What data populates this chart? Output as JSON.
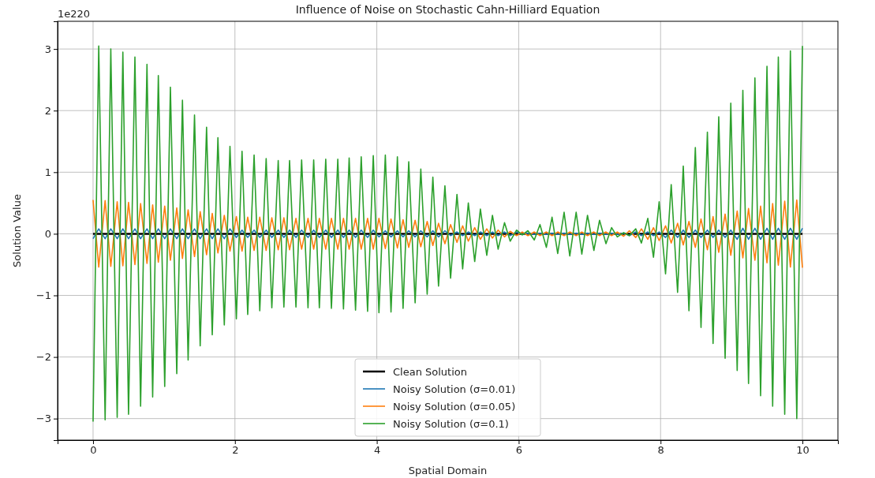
{
  "chart_data": {
    "type": "line",
    "title": "Influence of Noise on Stochastic Cahn-Hilliard Equation",
    "xlabel": "Spatial Domain",
    "ylabel": "Solution Value",
    "annotations": [
      "1e220"
    ],
    "xlim": [
      -0.5,
      10.5
    ],
    "xticks": [
      0,
      2,
      4,
      6,
      8,
      10
    ],
    "ylim": [
      -3.35,
      3.45
    ],
    "yticks": [
      {
        "value": -3,
        "label": "−3"
      },
      {
        "value": -2,
        "label": "−2"
      },
      {
        "value": -1,
        "label": "−1"
      },
      0,
      1,
      2,
      3
    ],
    "grid": true,
    "legend": "bottom",
    "marker": "none",
    "line_style": "solid",
    "x": [
      0,
      0.08,
      0.17,
      0.25,
      0.34,
      0.42,
      0.5,
      0.59,
      0.67,
      0.76,
      0.84,
      0.92,
      1.01,
      1.09,
      1.18,
      1.26,
      1.34,
      1.43,
      1.51,
      1.6,
      1.68,
      1.76,
      1.85,
      1.93,
      2.02,
      2.1,
      2.18,
      2.27,
      2.35,
      2.44,
      2.52,
      2.61,
      2.69,
      2.77,
      2.86,
      2.94,
      3.03,
      3.11,
      3.19,
      3.28,
      3.36,
      3.45,
      3.53,
      3.61,
      3.7,
      3.78,
      3.87,
      3.95,
      4.03,
      4.12,
      4.2,
      4.29,
      4.37,
      4.45,
      4.54,
      4.62,
      4.71,
      4.79,
      4.87,
      4.96,
      5.04,
      5.13,
      5.21,
      5.29,
      5.38,
      5.46,
      5.55,
      5.63,
      5.71,
      5.8,
      5.88,
      5.97,
      6.05,
      6.13,
      6.22,
      6.3,
      6.39,
      6.47,
      6.55,
      6.64,
      6.72,
      6.81,
      6.89,
      6.97,
      7.06,
      7.14,
      7.23,
      7.31,
      7.39,
      7.48,
      7.56,
      7.65,
      7.73,
      7.82,
      7.9,
      7.98,
      8.07,
      8.15,
      8.24,
      8.32,
      8.4,
      8.49,
      8.57,
      8.66,
      8.74,
      8.82,
      8.91,
      8.99,
      9.08,
      9.16,
      9.24,
      9.33,
      9.41,
      9.5,
      9.58,
      9.66,
      9.75,
      9.83,
      9.92,
      10
    ],
    "series": [
      {
        "name": "Clean Solution",
        "color": "#000000",
        "values": [
          0,
          0,
          0,
          0,
          0,
          0,
          0,
          0,
          0,
          0,
          0,
          0,
          0,
          0,
          0,
          0,
          0,
          0,
          0,
          0,
          0,
          0,
          0,
          0,
          0,
          0,
          0,
          0,
          0,
          0,
          0,
          0,
          0,
          0,
          0,
          0,
          0,
          0,
          0,
          0,
          0,
          0,
          0,
          0,
          0,
          0,
          0,
          0,
          0,
          0,
          0,
          0,
          0,
          0,
          0,
          0,
          0,
          0,
          0,
          0,
          0,
          0,
          0,
          0,
          0,
          0,
          0,
          0,
          0,
          0,
          0,
          0,
          0,
          0,
          0,
          0,
          0,
          0,
          0,
          0,
          0,
          0,
          0,
          0,
          0,
          0,
          0,
          0,
          0,
          0,
          0,
          0,
          0,
          0,
          0,
          0,
          0,
          0,
          0,
          0,
          0,
          0,
          0,
          0,
          0,
          0,
          0,
          0,
          0,
          0,
          0,
          0,
          0,
          0,
          0,
          0,
          0,
          0,
          0,
          0
        ]
      },
      {
        "name": "Noisy Solution (σ=0.01)",
        "color": "#1f77b4",
        "values": [
          -0.08,
          0.08,
          -0.08,
          0.08,
          -0.08,
          0.08,
          -0.08,
          0.08,
          -0.08,
          0.08,
          -0.08,
          0.08,
          -0.08,
          0.08,
          -0.08,
          0.08,
          -0.08,
          0.08,
          -0.08,
          0.08,
          -0.08,
          0.08,
          -0.08,
          0.08,
          -0.06,
          0.06,
          -0.06,
          0.06,
          -0.06,
          0.06,
          -0.06,
          0.06,
          -0.06,
          0.06,
          -0.06,
          0.06,
          -0.06,
          0.06,
          -0.06,
          0.06,
          -0.06,
          0.06,
          -0.06,
          0.06,
          -0.06,
          0.06,
          -0.06,
          0.06,
          -0.05,
          0.05,
          -0.05,
          0.05,
          -0.05,
          0.05,
          -0.05,
          0.05,
          -0.05,
          0.05,
          -0.05,
          0.05,
          -0.03,
          0.03,
          -0.03,
          0.03,
          -0.03,
          0.03,
          -0.03,
          0.03,
          -0.03,
          0.03,
          -0.03,
          0.03,
          -0.01,
          0.01,
          -0.01,
          0.01,
          -0.01,
          0.01,
          -0.01,
          0.01,
          -0.01,
          0.01,
          -0.01,
          0.01,
          -0.01,
          0.01,
          -0.01,
          0.01,
          -0.01,
          0.01,
          -0.03,
          0.03,
          -0.03,
          0.03,
          -0.03,
          0.03,
          -0.06,
          0.06,
          -0.06,
          0.06,
          -0.06,
          0.06,
          -0.06,
          0.06,
          -0.06,
          0.06,
          -0.06,
          0.06,
          -0.09,
          0.09,
          -0.09,
          0.09,
          -0.09,
          0.09,
          -0.09,
          0.09,
          -0.09,
          0.09,
          -0.09,
          0.09
        ]
      },
      {
        "name": "Noisy Solution (σ=0.05)",
        "color": "#ff7f0e",
        "values": [
          0.55,
          -0.54,
          0.54,
          -0.53,
          0.52,
          -0.52,
          0.51,
          -0.5,
          0.49,
          -0.48,
          0.47,
          -0.46,
          0.45,
          -0.43,
          0.42,
          -0.4,
          0.39,
          -0.37,
          0.36,
          -0.34,
          0.33,
          -0.31,
          0.3,
          -0.28,
          0.28,
          -0.28,
          0.27,
          -0.27,
          0.27,
          -0.27,
          0.26,
          -0.26,
          0.26,
          -0.26,
          0.25,
          -0.25,
          0.25,
          -0.25,
          0.25,
          -0.25,
          0.25,
          -0.25,
          0.25,
          -0.25,
          0.25,
          -0.25,
          0.25,
          -0.25,
          0.25,
          -0.24,
          0.24,
          -0.23,
          0.23,
          -0.22,
          0.22,
          -0.21,
          0.2,
          -0.19,
          0.17,
          -0.16,
          0.15,
          -0.14,
          0.13,
          -0.12,
          0.1,
          -0.09,
          0.08,
          -0.07,
          0.06,
          -0.05,
          0.04,
          -0.03,
          0.03,
          -0.03,
          0.03,
          -0.03,
          0.03,
          -0.03,
          0.03,
          -0.03,
          0.03,
          -0.03,
          0.03,
          -0.03,
          0.03,
          -0.03,
          0.03,
          -0.03,
          0.03,
          -0.04,
          0.05,
          -0.06,
          0.08,
          -0.09,
          0.1,
          -0.11,
          0.13,
          -0.15,
          0.17,
          -0.18,
          0.2,
          -0.22,
          0.24,
          -0.26,
          0.28,
          -0.3,
          0.32,
          -0.35,
          0.37,
          -0.39,
          0.41,
          -0.43,
          0.45,
          -0.47,
          0.49,
          -0.51,
          0.53,
          -0.54,
          0.55,
          -0.55
        ]
      },
      {
        "name": "Noisy Solution (σ=0.1)",
        "color": "#2ca02c",
        "values": [
          -3.05,
          3.05,
          -3.02,
          3.0,
          -2.98,
          2.95,
          -2.93,
          2.87,
          -2.8,
          2.75,
          -2.65,
          2.57,
          -2.48,
          2.38,
          -2.27,
          2.17,
          -2.05,
          1.93,
          -1.82,
          1.73,
          -1.64,
          1.56,
          -1.48,
          1.42,
          -1.38,
          1.34,
          -1.31,
          1.28,
          -1.25,
          1.22,
          -1.2,
          1.19,
          -1.19,
          1.19,
          -1.19,
          1.2,
          -1.2,
          1.2,
          -1.2,
          1.21,
          -1.21,
          1.21,
          -1.22,
          1.23,
          -1.24,
          1.25,
          -1.26,
          1.27,
          -1.28,
          1.28,
          -1.27,
          1.25,
          -1.21,
          1.17,
          -1.12,
          1.05,
          -0.98,
          0.92,
          -0.85,
          0.78,
          -0.72,
          0.64,
          -0.57,
          0.5,
          -0.45,
          0.4,
          -0.35,
          0.3,
          -0.25,
          0.18,
          -0.12,
          0.06,
          -0.02,
          0.05,
          -0.1,
          0.15,
          -0.22,
          0.27,
          -0.32,
          0.35,
          -0.36,
          0.35,
          -0.33,
          0.3,
          -0.27,
          0.22,
          -0.16,
          0.1,
          -0.05,
          0.02,
          -0.03,
          0.08,
          -0.15,
          0.25,
          -0.38,
          0.52,
          -0.65,
          0.8,
          -0.95,
          1.1,
          -1.25,
          1.4,
          -1.52,
          1.65,
          -1.78,
          1.9,
          -2.02,
          2.12,
          -2.22,
          2.33,
          -2.43,
          2.53,
          -2.63,
          2.72,
          -2.8,
          2.87,
          -2.93,
          2.97,
          -3.0,
          3.05
        ]
      }
    ]
  }
}
